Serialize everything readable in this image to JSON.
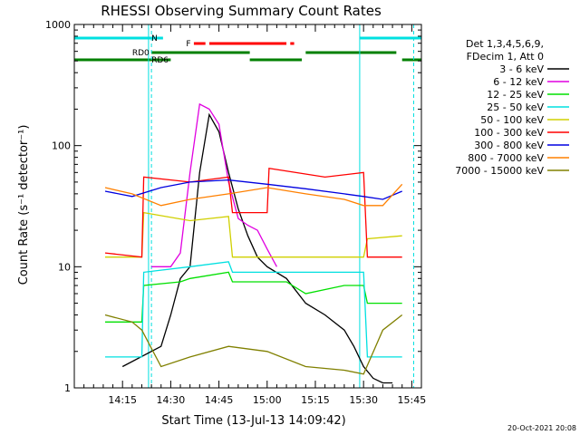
{
  "chart_data": {
    "type": "line",
    "title": "RHESSI Observing Summary Count Rates",
    "xlabel": "Start Time (13-Jul-13 14:09:42)",
    "ylabel": "Count Rate (s⁻¹ detector⁻¹)",
    "x_range_minutes": [
      14.0,
      15.8
    ],
    "ylim": [
      1,
      1000
    ],
    "yscale": "log",
    "x_ticks": [
      "14:15",
      "14:30",
      "14:45",
      "15:00",
      "15:15",
      "15:30",
      "15:45"
    ],
    "y_ticks": [
      "1",
      "10",
      "100",
      "1000"
    ],
    "legend_header": [
      "Det 1,3,4,5,6,9,",
      "FDecim 1, Att 0"
    ],
    "timestamp": "20-Oct-2021 20:08",
    "flag_labels": {
      "n": "N",
      "f": "F",
      "rd0": "RD0",
      "rd6": "RD6"
    },
    "series": [
      {
        "name": "3 - 6 keV",
        "color": "#000000",
        "x": [
          14.25,
          14.45,
          14.5,
          14.55,
          14.6,
          14.65,
          14.7,
          14.75,
          14.8,
          14.85,
          14.9,
          14.95,
          15.0,
          15.1,
          15.2,
          15.3,
          15.4,
          15.45,
          15.5,
          15.55,
          15.6,
          15.65
        ],
        "y": [
          1.5,
          2.2,
          4,
          8,
          10,
          60,
          180,
          130,
          60,
          30,
          18,
          12,
          10,
          8,
          5,
          4,
          3,
          2.2,
          1.5,
          1.2,
          1.1,
          1.1
        ]
      },
      {
        "name": "6 - 12 keV",
        "color": "#e000e0",
        "x": [
          14.4,
          14.5,
          14.55,
          14.6,
          14.65,
          14.7,
          14.75,
          14.8,
          14.85,
          14.9,
          14.95,
          15.0,
          15.05
        ],
        "y": [
          10,
          10,
          13,
          60,
          220,
          200,
          150,
          50,
          25,
          22,
          20,
          14,
          10
        ]
      },
      {
        "name": "12 - 25 keV",
        "color": "#00e000",
        "x": [
          14.16,
          14.35,
          14.36,
          14.55,
          14.6,
          14.8,
          14.82,
          15.1,
          15.2,
          15.4,
          15.5,
          15.52,
          15.7
        ],
        "y": [
          3.5,
          3.5,
          7,
          7.5,
          8,
          9,
          7.5,
          7.5,
          6,
          7,
          7,
          5,
          5
        ]
      },
      {
        "name": "25 - 50 keV",
        "color": "#00e0e0",
        "x": [
          14.16,
          14.35,
          14.36,
          14.6,
          14.8,
          14.82,
          15.1,
          15.3,
          15.5,
          15.52,
          15.7
        ],
        "y": [
          1.8,
          1.8,
          9,
          10,
          11,
          9,
          9,
          9,
          9,
          1.8,
          1.8
        ]
      },
      {
        "name": "50 - 100 keV",
        "color": "#d0d000",
        "x": [
          14.16,
          14.35,
          14.36,
          14.6,
          14.8,
          14.82,
          15.0,
          15.1,
          15.3,
          15.5,
          15.52,
          15.7
        ],
        "y": [
          12,
          12,
          28,
          24,
          26,
          12,
          12,
          12,
          12,
          12,
          17,
          18
        ]
      },
      {
        "name": "100 - 300 keV",
        "color": "#ff0000",
        "x": [
          14.16,
          14.35,
          14.36,
          14.6,
          14.8,
          14.82,
          15.0,
          15.01,
          15.3,
          15.5,
          15.52,
          15.7
        ],
        "y": [
          13,
          12,
          55,
          50,
          55,
          28,
          28,
          65,
          55,
          60,
          12,
          12
        ]
      },
      {
        "name": "300 - 800 keV",
        "color": "#0000e0",
        "x": [
          14.16,
          14.3,
          14.45,
          14.6,
          14.8,
          15.0,
          15.2,
          15.4,
          15.5,
          15.6,
          15.7
        ],
        "y": [
          42,
          38,
          45,
          50,
          52,
          48,
          44,
          40,
          38,
          36,
          42
        ]
      },
      {
        "name": "800 - 7000 keV",
        "color": "#ff8000",
        "x": [
          14.16,
          14.3,
          14.45,
          14.6,
          14.8,
          15.0,
          15.2,
          15.4,
          15.5,
          15.6,
          15.7
        ],
        "y": [
          45,
          40,
          32,
          36,
          40,
          45,
          40,
          36,
          32,
          32,
          48
        ]
      },
      {
        "name": "7000 - 15000 keV",
        "color": "#808000",
        "x": [
          14.16,
          14.3,
          14.35,
          14.45,
          14.6,
          14.8,
          15.0,
          15.2,
          15.4,
          15.5,
          15.6,
          15.7
        ],
        "y": [
          4,
          3.5,
          3,
          1.5,
          1.8,
          2.2,
          2.0,
          1.5,
          1.4,
          1.3,
          3.0,
          4.0
        ]
      }
    ]
  }
}
